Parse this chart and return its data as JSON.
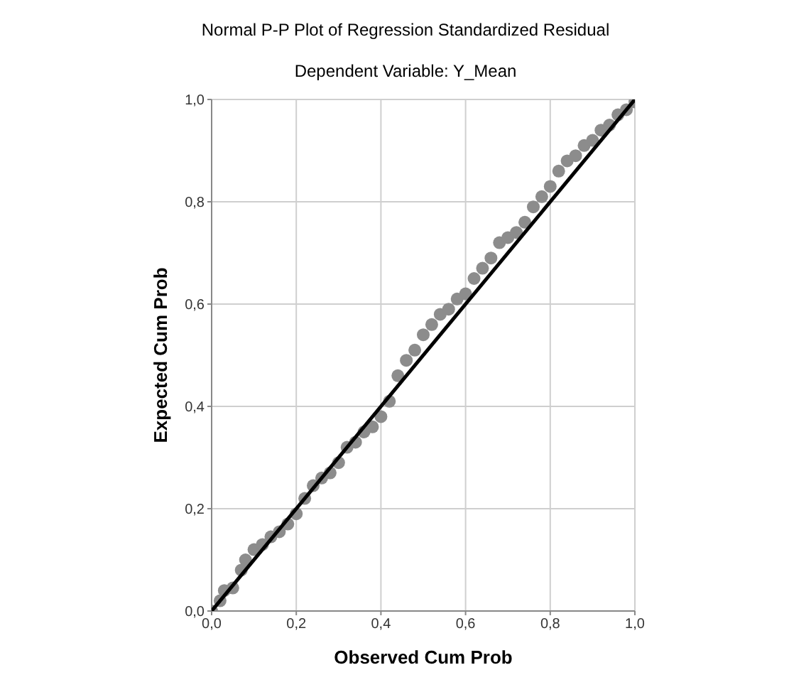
{
  "chart_data": {
    "type": "scatter",
    "title": "Normal P-P Plot of Regression Standardized Residual",
    "subtitle": "Dependent Variable: Y_Mean",
    "xlabel": "Observed Cum Prob",
    "ylabel": "Expected Cum Prob",
    "xlim": [
      0,
      1
    ],
    "ylim": [
      0,
      1
    ],
    "xticks": [
      {
        "value": 0,
        "label": "0,0"
      },
      {
        "value": 0.2,
        "label": "0,2"
      },
      {
        "value": 0.4,
        "label": "0,4"
      },
      {
        "value": 0.6,
        "label": "0,6"
      },
      {
        "value": 0.8,
        "label": "0,8"
      },
      {
        "value": 1,
        "label": "1,0"
      }
    ],
    "yticks": [
      {
        "value": 0,
        "label": "0,0"
      },
      {
        "value": 0.2,
        "label": "0,2"
      },
      {
        "value": 0.4,
        "label": "0,4"
      },
      {
        "value": 0.6,
        "label": "0,6"
      },
      {
        "value": 0.8,
        "label": "0,8"
      },
      {
        "value": 1,
        "label": "1,0"
      }
    ],
    "grid": true,
    "series": [
      {
        "color": "#8c8c8c",
        "marker": "circle",
        "x": [
          0,
          0.02,
          0.03,
          0.05,
          0.07,
          0.08,
          0.1,
          0.12,
          0.14,
          0.16,
          0.18,
          0.2,
          0.22,
          0.24,
          0.26,
          0.28,
          0.3,
          0.32,
          0.34,
          0.36,
          0.38,
          0.4,
          0.42,
          0.44,
          0.46,
          0.48,
          0.5,
          0.52,
          0.54,
          0.56,
          0.58,
          0.6,
          0.62,
          0.64,
          0.66,
          0.68,
          0.7,
          0.72,
          0.74,
          0.76,
          0.78,
          0.8,
          0.82,
          0.84,
          0.86,
          0.88,
          0.9,
          0.92,
          0.94,
          0.96,
          0.98,
          1
        ],
        "values": [
          0,
          0.02,
          0.04,
          0.045,
          0.08,
          0.1,
          0.12,
          0.13,
          0.145,
          0.155,
          0.17,
          0.19,
          0.22,
          0.245,
          0.26,
          0.27,
          0.29,
          0.32,
          0.33,
          0.35,
          0.36,
          0.38,
          0.41,
          0.46,
          0.49,
          0.51,
          0.54,
          0.56,
          0.58,
          0.59,
          0.61,
          0.62,
          0.65,
          0.67,
          0.69,
          0.72,
          0.73,
          0.74,
          0.76,
          0.79,
          0.81,
          0.83,
          0.86,
          0.88,
          0.89,
          0.91,
          0.92,
          0.94,
          0.95,
          0.97,
          0.98,
          0.995
        ]
      },
      {
        "type": "line",
        "marker": "none",
        "color": "#000000",
        "x": [
          0,
          1
        ],
        "values": [
          0,
          1
        ]
      }
    ]
  }
}
